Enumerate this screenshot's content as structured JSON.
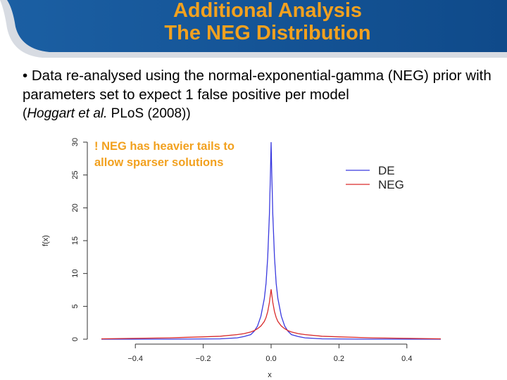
{
  "header": {
    "title_line1": "Additional Analysis",
    "title_line2": "The NEG Distribution"
  },
  "body": {
    "bullet": "• Data re-analysed using the normal-exponential-gamma (NEG) prior with parameters set to expect 1 false positive per model",
    "citation_prefix": "(",
    "citation_authors": "Hoggart et al.",
    "citation_rest": " PLoS (2008))"
  },
  "annotation": {
    "line1": "! NEG has heavier tails to",
    "line2": "allow sparser solutions"
  },
  "chart_data": {
    "type": "line",
    "xlabel": "x",
    "ylabel": "f(x)",
    "xlim": [
      -0.5,
      0.5
    ],
    "ylim": [
      0,
      30
    ],
    "x_ticks": [
      -0.4,
      -0.2,
      0.0,
      0.2,
      0.4
    ],
    "x_tick_labels": [
      "−0.4",
      "−0.2",
      "0.0",
      "0.2",
      "0.4"
    ],
    "y_ticks": [
      0,
      5,
      10,
      15,
      20,
      25,
      30
    ],
    "y_tick_labels": [
      "0",
      "5",
      "10",
      "15",
      "20",
      "25",
      "30"
    ],
    "legend_placement": "top-right",
    "grid": false,
    "series": [
      {
        "name": "DE",
        "color": "#3a3adf",
        "x": [
          -0.5,
          -0.3,
          -0.15,
          -0.1,
          -0.08,
          -0.06,
          -0.05,
          -0.04,
          -0.03,
          -0.02,
          -0.015,
          -0.01,
          -0.005,
          -0.002,
          0.0,
          0.002,
          0.005,
          0.01,
          0.015,
          0.02,
          0.03,
          0.04,
          0.05,
          0.06,
          0.08,
          0.1,
          0.15,
          0.3,
          0.5
        ],
        "y": [
          0.0,
          0.0,
          0.05,
          0.2,
          0.4,
          0.7,
          1.2,
          2.0,
          3.5,
          6.2,
          8.5,
          12.5,
          19.0,
          25.0,
          30.0,
          25.0,
          19.0,
          12.5,
          8.5,
          6.2,
          3.5,
          2.0,
          1.2,
          0.7,
          0.4,
          0.2,
          0.05,
          0.0,
          0.0
        ]
      },
      {
        "name": "NEG",
        "color": "#d92b2b",
        "x": [
          -0.5,
          -0.3,
          -0.2,
          -0.15,
          -0.1,
          -0.08,
          -0.06,
          -0.05,
          -0.04,
          -0.03,
          -0.02,
          -0.015,
          -0.01,
          -0.005,
          0.0,
          0.005,
          0.01,
          0.015,
          0.02,
          0.03,
          0.04,
          0.05,
          0.06,
          0.08,
          0.1,
          0.15,
          0.2,
          0.3,
          0.5
        ],
        "y": [
          0.05,
          0.2,
          0.35,
          0.45,
          0.7,
          0.85,
          1.1,
          1.3,
          1.6,
          2.0,
          2.7,
          3.3,
          4.2,
          5.6,
          7.6,
          5.6,
          4.2,
          3.3,
          2.7,
          2.0,
          1.6,
          1.3,
          1.1,
          0.85,
          0.7,
          0.45,
          0.35,
          0.2,
          0.05
        ]
      }
    ]
  }
}
